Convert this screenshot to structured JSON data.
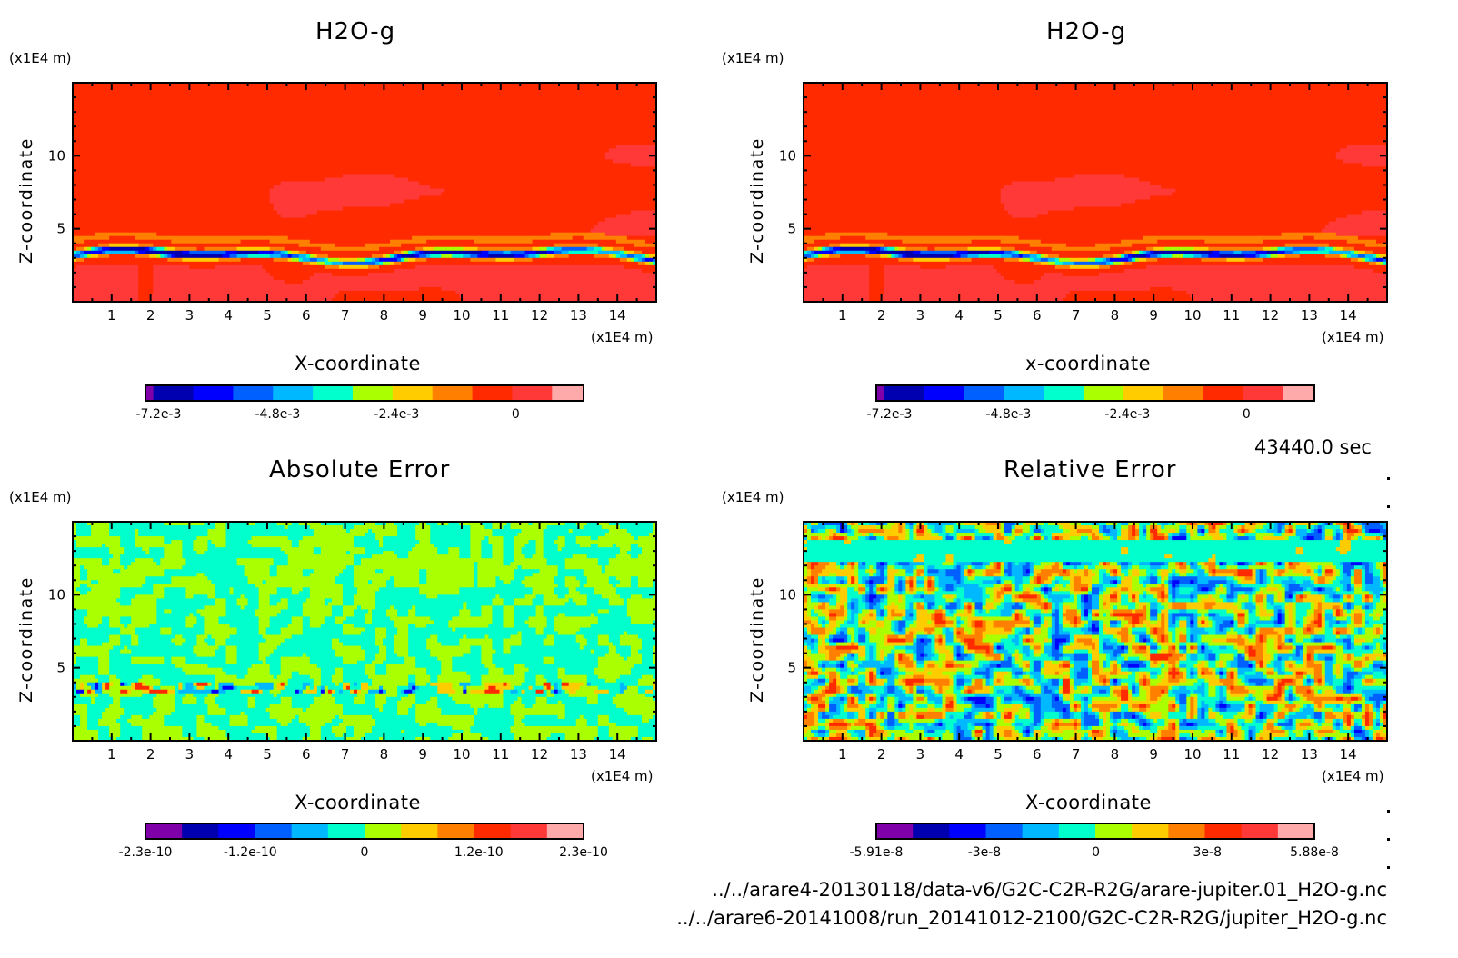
{
  "palette": [
    "#7f00a8",
    "#0000b0",
    "#0000ff",
    "#0060ff",
    "#00b8ff",
    "#00ffcc",
    "#aaff00",
    "#ffcc00",
    "#ff8000",
    "#ff2a00",
    "#ff3838",
    "#ffaaaa"
  ],
  "timestamp": "43440.0 sec",
  "files": [
    "../../arare4-20130118/data-v6/G2C-C2R-R2G/arare-jupiter.01_H2O-g.nc",
    "../../arare6-20141008/run_20141012-2100/G2C-C2R-R2G/jupiter_H2O-g.nc"
  ],
  "chart_data": [
    {
      "type": "heatmap",
      "id": "tl",
      "title": "H2O-g",
      "xlabel": "X-coordinate",
      "ylabel": "Z-coordinate",
      "x_unit": "(x1E4 m)",
      "y_unit": "(x1E4 m)",
      "xlim": [
        0,
        15
      ],
      "ylim": [
        0,
        15
      ],
      "xticks": [
        "1",
        "2",
        "3",
        "4",
        "5",
        "6",
        "7",
        "8",
        "9",
        "10",
        "11",
        "12",
        "13",
        "14"
      ],
      "yticks": [
        "5",
        "10"
      ],
      "colorbar": {
        "range": [
          -0.0075,
          0.0012
        ],
        "levels": 12,
        "tick_labels": [
          "-7.2e-3",
          "-4.8e-3",
          "-2.4e-3",
          "0"
        ],
        "tick_values": [
          -0.0072,
          -0.0048,
          -0.0024,
          0
        ]
      },
      "pattern": "h2o"
    },
    {
      "type": "heatmap",
      "id": "tr",
      "title": "H2O-g",
      "xlabel": "x-coordinate",
      "ylabel": "Z-coordinate",
      "x_unit": "(x1E4 m)",
      "y_unit": "(x1E4 m)",
      "xlim": [
        0,
        15
      ],
      "ylim": [
        0,
        15
      ],
      "xticks": [
        "1",
        "2",
        "3",
        "4",
        "5",
        "6",
        "7",
        "8",
        "9",
        "10",
        "11",
        "12",
        "13",
        "14"
      ],
      "yticks": [
        "5",
        "10"
      ],
      "colorbar": {
        "range": [
          -0.0075,
          0.0012
        ],
        "levels": 12,
        "tick_labels": [
          "-7.2e-3",
          "-4.8e-3",
          "-2.4e-3",
          "0"
        ],
        "tick_values": [
          -0.0072,
          -0.0048,
          -0.0024,
          0
        ]
      },
      "pattern": "h2o"
    },
    {
      "type": "heatmap",
      "id": "bl",
      "title": "Absolute Error",
      "xlabel": "X-coordinate",
      "ylabel": "Z-coordinate",
      "x_unit": "(x1E4 m)",
      "y_unit": "(x1E4 m)",
      "xlim": [
        0,
        15
      ],
      "ylim": [
        0,
        15
      ],
      "xticks": [
        "1",
        "2",
        "3",
        "4",
        "5",
        "6",
        "7",
        "8",
        "9",
        "10",
        "11",
        "12",
        "13",
        "14"
      ],
      "yticks": [
        "5",
        "10"
      ],
      "colorbar": {
        "range": [
          -2.3e-10,
          2.3e-10
        ],
        "levels": 12,
        "tick_labels": [
          "-2.3e-10",
          "-1.2e-10",
          "0",
          "1.2e-10",
          "2.3e-10"
        ],
        "tick_values": [
          -2.3e-10,
          -1.2e-10,
          0,
          1.2e-10,
          2.3e-10
        ]
      },
      "pattern": "abs_error"
    },
    {
      "type": "heatmap",
      "id": "br",
      "title": "Relative Error",
      "xlabel": "X-coordinate",
      "ylabel": "Z-coordinate",
      "x_unit": "(x1E4 m)",
      "y_unit": "(x1E4 m)",
      "xlim": [
        0,
        15
      ],
      "ylim": [
        0,
        15
      ],
      "xticks": [
        "1",
        "2",
        "3",
        "4",
        "5",
        "6",
        "7",
        "8",
        "9",
        "10",
        "11",
        "12",
        "13",
        "14"
      ],
      "yticks": [
        "5",
        "10"
      ],
      "colorbar": {
        "range": [
          -5.91e-08,
          5.88e-08
        ],
        "levels": 12,
        "tick_labels": [
          "-5.91e-8",
          "-3e-8",
          "0",
          "3e-8",
          "5.88e-8"
        ],
        "tick_values": [
          -5.91e-08,
          -3e-08,
          0,
          3e-08,
          5.88e-08
        ]
      },
      "pattern": "rel_error"
    }
  ]
}
